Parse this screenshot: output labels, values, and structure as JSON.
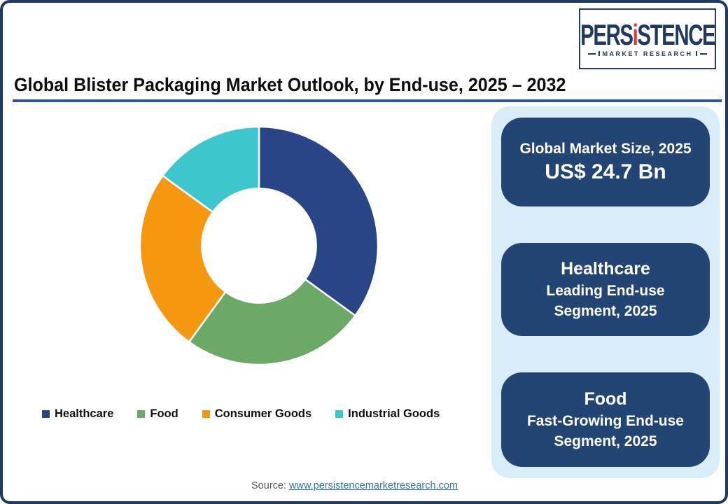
{
  "logo": {
    "pre": "PERS",
    "accent": "i",
    "post": "STENCE",
    "tagline": "MARKET RESEARCH"
  },
  "title": "Global Blister Packaging Market Outlook, by End-use, 2025 – 2032",
  "chart_data": {
    "type": "pie",
    "subtype": "donut",
    "title": "Global Blister Packaging Market Outlook, by End-use, 2025 – 2032",
    "categories": [
      "Healthcare",
      "Food",
      "Consumer Goods",
      "Industrial Goods"
    ],
    "values": [
      35,
      25,
      25,
      15
    ],
    "values_unit": "% share (estimated from arc angles)",
    "colors": [
      "#2A4585",
      "#6CA966",
      "#F5980F",
      "#3EC6CD"
    ],
    "start_angle_deg": 0,
    "direction": "clockwise",
    "inner_radius_ratio": 0.48,
    "separator_color": "#FFFFFF",
    "legend_position": "bottom"
  },
  "sidebar_cards": [
    {
      "line1": "Global Market Size, 2025",
      "line2": "US$ 24.7 Bn"
    },
    {
      "line1": "Healthcare",
      "line2": "Leading End-use Segment, 2025"
    },
    {
      "line1": "Food",
      "line2": "Fast-Growing End-use Segment, 2025"
    }
  ],
  "source": {
    "prefix": "Source: ",
    "link_text": "www.persistencemarketresearch.com"
  },
  "colors": {
    "frame_border": "#1F3864",
    "title_rule": "#2E5597",
    "card_bg": "#234573",
    "panel_bg": "#D9EDF8",
    "logo_navy": "#1F3864",
    "logo_red": "#D93A35",
    "link_blue": "#2E75B6",
    "source_gray": "#595959"
  }
}
